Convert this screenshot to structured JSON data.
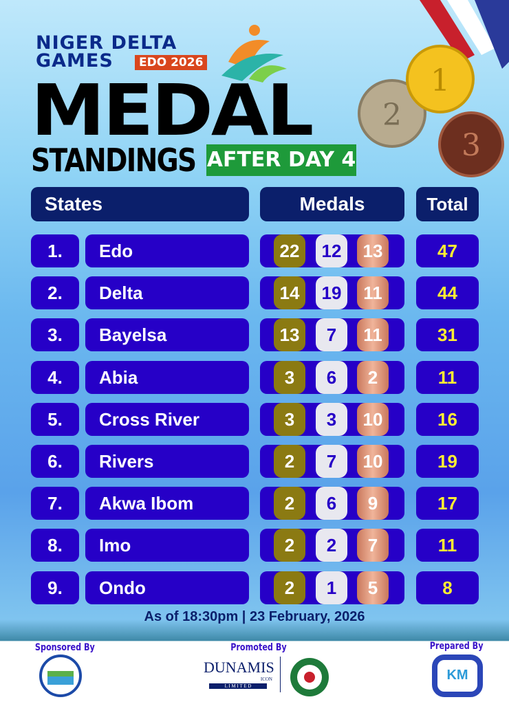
{
  "header": {
    "logo_line1": "NIGER  DELTA",
    "logo_line2": "GAMES",
    "logo_badge": "EDO 2026",
    "title": "MEDAL",
    "subtitle": "STANDINGS",
    "badge": "AFTER DAY 4"
  },
  "columns": {
    "states": "States",
    "medals": "Medals",
    "total": "Total"
  },
  "rows": [
    {
      "rank": "1.",
      "state": "Edo",
      "gold": "22",
      "silver": "12",
      "bronze": "13",
      "total": "47"
    },
    {
      "rank": "2.",
      "state": "Delta",
      "gold": "14",
      "silver": "19",
      "bronze": "11",
      "total": "44"
    },
    {
      "rank": "3.",
      "state": "Bayelsa",
      "gold": "13",
      "silver": "7",
      "bronze": "11",
      "total": "31"
    },
    {
      "rank": "4.",
      "state": "Abia",
      "gold": "3",
      "silver": "6",
      "bronze": "2",
      "total": "11"
    },
    {
      "rank": "5.",
      "state": "Cross River",
      "gold": "3",
      "silver": "3",
      "bronze": "10",
      "total": "16"
    },
    {
      "rank": "6.",
      "state": "Rivers",
      "gold": "2",
      "silver": "7",
      "bronze": "10",
      "total": "19"
    },
    {
      "rank": "7.",
      "state": "Akwa Ibom",
      "gold": "2",
      "silver": "6",
      "bronze": "9",
      "total": "17"
    },
    {
      "rank": "8.",
      "state": "Imo",
      "gold": "2",
      "silver": "2",
      "bronze": "7",
      "total": "11"
    },
    {
      "rank": "9.",
      "state": "Ondo",
      "gold": "2",
      "silver": "1",
      "bronze": "5",
      "total": "8"
    }
  ],
  "as_of": "As of 18:30pm  |  23 February, 2026",
  "footer": {
    "sponsored": "Sponsored By",
    "promoted": "Promoted By",
    "prepared": "Prepared By",
    "dunamis": "DUNAMIS",
    "dunamis_sub": "ICON",
    "dunamis_ltd": "L I M I T E D",
    "km": "KM"
  },
  "colors": {
    "row": "#2600c7",
    "header": "#0b1f6b",
    "gold": "#8b7a12",
    "silver": "#e8e8ef",
    "bronze": "#e0967a",
    "total_text": "#ffee33"
  }
}
